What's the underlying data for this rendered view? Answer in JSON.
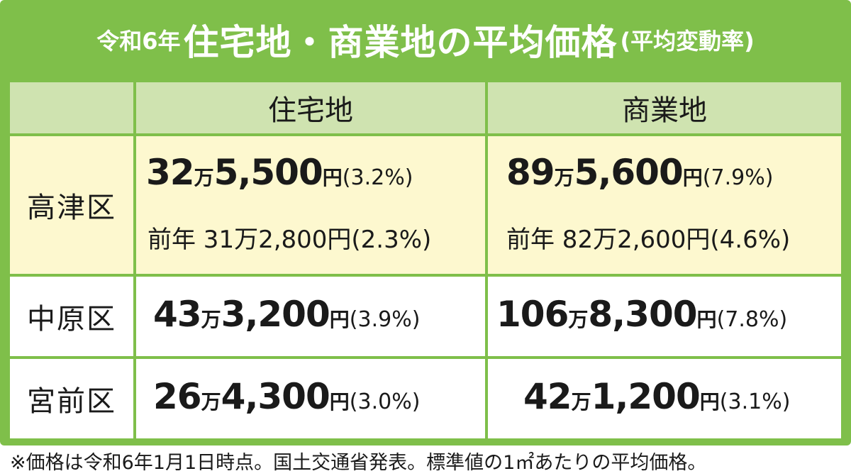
{
  "title": {
    "prefix": "令和6年",
    "main": "住宅地・商業地の平均価格",
    "suffix": "(平均変動率)"
  },
  "header": {
    "residential": "住宅地",
    "commercial": "商業地"
  },
  "rows": [
    {
      "ward": "高津区",
      "residential": {
        "man": "32",
        "rest": "5,500",
        "yen": "円",
        "pct": "(3.2%)",
        "prev": "前年 31万2,800円(2.3%)"
      },
      "commercial": {
        "man": "89",
        "rest": "5,600",
        "yen": "円",
        "pct": "(7.9%)",
        "prev": "前年 82万2,600円(4.6%)"
      }
    },
    {
      "ward": "中原区",
      "residential": {
        "man": "43",
        "rest": "3,200",
        "yen": "円",
        "pct": "(3.9%)"
      },
      "commercial": {
        "man": "106",
        "rest": "8,300",
        "yen": "円",
        "pct": "(7.8%)"
      }
    },
    {
      "ward": "宮前区",
      "residential": {
        "man": "26",
        "rest": "4,300",
        "yen": "円",
        "pct": "(3.0%)"
      },
      "commercial": {
        "man": "42",
        "rest": "1,200",
        "yen": "円",
        "pct": "(3.1%)"
      }
    }
  ],
  "unit_man": "万",
  "note": "※価格は令和6年1月1日時点。国土交通省発表。標準値の1㎡あたりの平均価格。",
  "colors": {
    "frame_green": "#7fbf4a",
    "header_green": "#cfe3b0",
    "highlight_yellow": "#fdf8cf"
  }
}
